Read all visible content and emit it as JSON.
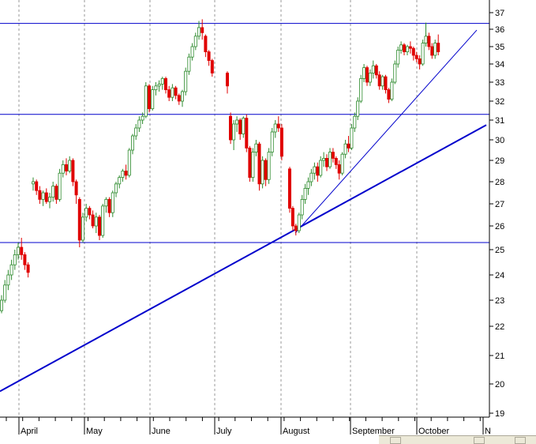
{
  "chart_data": {
    "type": "candlestick",
    "title": "",
    "xlabel": "",
    "ylabel": "",
    "ylim": [
      19,
      37
    ],
    "y_ticks": [
      19,
      20,
      21,
      22,
      23,
      24,
      25,
      26,
      27,
      28,
      29,
      30,
      31,
      32,
      33,
      34,
      35,
      36,
      37
    ],
    "x_ticks": [
      "April",
      "May",
      "June",
      "July",
      "August",
      "September",
      "October",
      "N"
    ],
    "grid": "vertical dashed at month starts",
    "axis_position": "right",
    "colors": {
      "up": "#2e8b2e",
      "down": "#e00000",
      "line": "#0000cc",
      "grid": "#9a9a9a"
    },
    "horizontal_lines": [
      36.35,
      31.3,
      25.3
    ],
    "trendlines": [
      {
        "from": [
          "start",
          19.75
        ],
        "to": [
          "end",
          30.75
        ]
      },
      {
        "from": [
          "August",
          25.7
        ],
        "to": [
          "October",
          35.95
        ]
      }
    ],
    "candles": [
      {
        "o": 22.6,
        "h": 23.2,
        "l": 22.5,
        "c": 23.0
      },
      {
        "o": 23.0,
        "h": 23.8,
        "l": 22.9,
        "c": 23.6
      },
      {
        "o": 23.6,
        "h": 24.2,
        "l": 23.4,
        "c": 24.0
      },
      {
        "o": 24.0,
        "h": 24.6,
        "l": 23.8,
        "c": 24.4
      },
      {
        "o": 24.4,
        "h": 25.0,
        "l": 24.2,
        "c": 24.8
      },
      {
        "o": 24.8,
        "h": 25.3,
        "l": 24.6,
        "c": 25.1
      },
      {
        "o": 25.1,
        "h": 25.5,
        "l": 24.6,
        "c": 24.8
      },
      {
        "o": 24.8,
        "h": 24.9,
        "l": 24.2,
        "c": 24.4
      },
      {
        "o": 24.4,
        "h": 24.5,
        "l": 23.9,
        "c": 24.1
      },
      {
        "o": 27.9,
        "h": 28.2,
        "l": 27.6,
        "c": 28.0
      },
      {
        "o": 28.0,
        "h": 28.1,
        "l": 27.4,
        "c": 27.6
      },
      {
        "o": 27.6,
        "h": 27.8,
        "l": 27.0,
        "c": 27.2
      },
      {
        "o": 27.2,
        "h": 27.6,
        "l": 26.9,
        "c": 27.5
      },
      {
        "o": 27.5,
        "h": 27.7,
        "l": 27.0,
        "c": 27.1
      },
      {
        "o": 27.1,
        "h": 27.5,
        "l": 26.8,
        "c": 27.3
      },
      {
        "o": 27.3,
        "h": 28.0,
        "l": 27.1,
        "c": 27.8
      },
      {
        "o": 27.8,
        "h": 27.9,
        "l": 27.0,
        "c": 27.2
      },
      {
        "o": 27.2,
        "h": 28.6,
        "l": 27.1,
        "c": 28.4
      },
      {
        "o": 28.4,
        "h": 29.0,
        "l": 28.2,
        "c": 28.8
      },
      {
        "o": 28.8,
        "h": 29.1,
        "l": 28.3,
        "c": 28.5
      },
      {
        "o": 28.5,
        "h": 29.2,
        "l": 28.4,
        "c": 29.0
      },
      {
        "o": 29.0,
        "h": 29.1,
        "l": 27.8,
        "c": 28.0
      },
      {
        "o": 28.0,
        "h": 28.1,
        "l": 27.0,
        "c": 27.4
      },
      {
        "o": 27.2,
        "h": 27.3,
        "l": 25.1,
        "c": 25.4
      },
      {
        "o": 25.4,
        "h": 26.6,
        "l": 25.3,
        "c": 26.4
      },
      {
        "o": 26.4,
        "h": 27.0,
        "l": 26.2,
        "c": 26.8
      },
      {
        "o": 26.8,
        "h": 26.9,
        "l": 26.3,
        "c": 26.5
      },
      {
        "o": 26.5,
        "h": 26.7,
        "l": 25.9,
        "c": 26.0
      },
      {
        "o": 26.0,
        "h": 26.6,
        "l": 25.7,
        "c": 26.4
      },
      {
        "o": 26.4,
        "h": 26.5,
        "l": 25.4,
        "c": 25.6
      },
      {
        "o": 25.6,
        "h": 27.0,
        "l": 25.5,
        "c": 26.9
      },
      {
        "o": 26.9,
        "h": 27.3,
        "l": 26.6,
        "c": 27.2
      },
      {
        "o": 27.2,
        "h": 27.3,
        "l": 26.4,
        "c": 26.6
      },
      {
        "o": 26.6,
        "h": 27.6,
        "l": 26.4,
        "c": 27.5
      },
      {
        "o": 27.5,
        "h": 28.0,
        "l": 27.3,
        "c": 27.9
      },
      {
        "o": 27.9,
        "h": 28.3,
        "l": 27.7,
        "c": 28.2
      },
      {
        "o": 28.2,
        "h": 28.6,
        "l": 28.0,
        "c": 28.5
      },
      {
        "o": 28.5,
        "h": 28.8,
        "l": 28.1,
        "c": 28.3
      },
      {
        "o": 28.3,
        "h": 29.6,
        "l": 28.2,
        "c": 29.5
      },
      {
        "o": 29.5,
        "h": 30.3,
        "l": 29.3,
        "c": 30.2
      },
      {
        "o": 30.2,
        "h": 30.8,
        "l": 30.0,
        "c": 30.6
      },
      {
        "o": 30.6,
        "h": 31.2,
        "l": 30.4,
        "c": 31.0
      },
      {
        "o": 31.0,
        "h": 31.4,
        "l": 30.8,
        "c": 31.2
      },
      {
        "o": 31.2,
        "h": 33.0,
        "l": 31.1,
        "c": 32.8
      },
      {
        "o": 32.8,
        "h": 32.9,
        "l": 31.4,
        "c": 31.6
      },
      {
        "o": 31.6,
        "h": 32.8,
        "l": 31.5,
        "c": 32.6
      },
      {
        "o": 32.6,
        "h": 33.0,
        "l": 32.3,
        "c": 32.8
      },
      {
        "o": 32.8,
        "h": 33.1,
        "l": 32.5,
        "c": 32.9
      },
      {
        "o": 32.9,
        "h": 33.3,
        "l": 32.6,
        "c": 33.2
      },
      {
        "o": 33.2,
        "h": 33.3,
        "l": 32.4,
        "c": 32.6
      },
      {
        "o": 32.6,
        "h": 32.8,
        "l": 32.0,
        "c": 32.2
      },
      {
        "o": 32.2,
        "h": 32.9,
        "l": 32.0,
        "c": 32.7
      },
      {
        "o": 32.7,
        "h": 32.8,
        "l": 32.1,
        "c": 32.3
      },
      {
        "o": 32.3,
        "h": 32.4,
        "l": 31.8,
        "c": 32.0
      },
      {
        "o": 32.0,
        "h": 32.6,
        "l": 31.7,
        "c": 32.5
      },
      {
        "o": 32.5,
        "h": 33.8,
        "l": 32.3,
        "c": 33.6
      },
      {
        "o": 33.6,
        "h": 34.6,
        "l": 33.4,
        "c": 34.4
      },
      {
        "o": 34.4,
        "h": 35.2,
        "l": 34.2,
        "c": 35.0
      },
      {
        "o": 35.0,
        "h": 35.8,
        "l": 34.8,
        "c": 35.6
      },
      {
        "o": 35.6,
        "h": 36.5,
        "l": 35.4,
        "c": 36.1
      },
      {
        "o": 36.1,
        "h": 36.6,
        "l": 35.4,
        "c": 35.8
      },
      {
        "o": 35.6,
        "h": 35.7,
        "l": 34.4,
        "c": 34.7
      },
      {
        "o": 34.7,
        "h": 34.8,
        "l": 33.9,
        "c": 34.2
      },
      {
        "o": 34.2,
        "h": 34.3,
        "l": 33.3,
        "c": 33.5
      },
      {
        "o": 33.5,
        "h": 33.6,
        "l": 32.4,
        "c": 32.8
      },
      {
        "o": 31.2,
        "h": 31.4,
        "l": 29.8,
        "c": 30.0
      },
      {
        "o": 30.0,
        "h": 31.0,
        "l": 29.5,
        "c": 30.8
      },
      {
        "o": 30.8,
        "h": 31.2,
        "l": 30.4,
        "c": 31.0
      },
      {
        "o": 31.0,
        "h": 31.1,
        "l": 30.0,
        "c": 30.3
      },
      {
        "o": 30.3,
        "h": 31.2,
        "l": 30.1,
        "c": 31.1
      },
      {
        "o": 31.1,
        "h": 31.3,
        "l": 29.4,
        "c": 29.6
      },
      {
        "o": 29.6,
        "h": 29.7,
        "l": 28.0,
        "c": 28.2
      },
      {
        "o": 28.2,
        "h": 29.6,
        "l": 28.0,
        "c": 29.4
      },
      {
        "o": 29.4,
        "h": 30.0,
        "l": 29.2,
        "c": 29.8
      },
      {
        "o": 29.8,
        "h": 29.9,
        "l": 27.6,
        "c": 27.9
      },
      {
        "o": 27.9,
        "h": 29.2,
        "l": 27.7,
        "c": 29.0
      },
      {
        "o": 29.0,
        "h": 29.1,
        "l": 27.8,
        "c": 28.1
      },
      {
        "o": 28.1,
        "h": 29.6,
        "l": 27.9,
        "c": 29.4
      },
      {
        "o": 29.4,
        "h": 30.6,
        "l": 29.2,
        "c": 30.4
      },
      {
        "o": 30.4,
        "h": 31.0,
        "l": 30.1,
        "c": 30.8
      },
      {
        "o": 30.8,
        "h": 31.2,
        "l": 30.4,
        "c": 30.6
      },
      {
        "o": 30.6,
        "h": 30.8,
        "l": 29.0,
        "c": 29.2
      },
      {
        "o": 28.6,
        "h": 28.7,
        "l": 26.6,
        "c": 26.8
      },
      {
        "o": 26.8,
        "h": 26.9,
        "l": 25.8,
        "c": 26.0
      },
      {
        "o": 26.0,
        "h": 26.1,
        "l": 25.6,
        "c": 25.8
      },
      {
        "o": 25.8,
        "h": 26.6,
        "l": 25.7,
        "c": 26.5
      },
      {
        "o": 26.5,
        "h": 27.4,
        "l": 26.3,
        "c": 27.2
      },
      {
        "o": 27.2,
        "h": 27.9,
        "l": 27.0,
        "c": 27.7
      },
      {
        "o": 27.7,
        "h": 28.2,
        "l": 27.4,
        "c": 28.0
      },
      {
        "o": 28.0,
        "h": 28.6,
        "l": 27.8,
        "c": 28.4
      },
      {
        "o": 28.4,
        "h": 28.9,
        "l": 28.1,
        "c": 28.7
      },
      {
        "o": 28.7,
        "h": 28.9,
        "l": 28.0,
        "c": 28.3
      },
      {
        "o": 28.3,
        "h": 29.2,
        "l": 28.2,
        "c": 29.0
      },
      {
        "o": 29.0,
        "h": 29.4,
        "l": 28.7,
        "c": 29.1
      },
      {
        "o": 29.1,
        "h": 29.3,
        "l": 28.5,
        "c": 28.7
      },
      {
        "o": 28.7,
        "h": 29.6,
        "l": 28.6,
        "c": 29.4
      },
      {
        "o": 29.4,
        "h": 29.6,
        "l": 28.9,
        "c": 29.1
      },
      {
        "o": 29.1,
        "h": 29.2,
        "l": 28.6,
        "c": 28.8
      },
      {
        "o": 28.8,
        "h": 29.0,
        "l": 28.1,
        "c": 28.4
      },
      {
        "o": 28.4,
        "h": 29.4,
        "l": 28.3,
        "c": 29.3
      },
      {
        "o": 29.3,
        "h": 30.0,
        "l": 29.1,
        "c": 29.8
      },
      {
        "o": 29.8,
        "h": 30.2,
        "l": 29.4,
        "c": 29.6
      },
      {
        "o": 29.6,
        "h": 30.8,
        "l": 29.5,
        "c": 30.6
      },
      {
        "o": 30.6,
        "h": 31.4,
        "l": 30.4,
        "c": 31.2
      },
      {
        "o": 31.2,
        "h": 32.2,
        "l": 31.0,
        "c": 32.0
      },
      {
        "o": 32.0,
        "h": 33.4,
        "l": 31.9,
        "c": 33.2
      },
      {
        "o": 33.2,
        "h": 34.0,
        "l": 33.0,
        "c": 33.8
      },
      {
        "o": 33.8,
        "h": 33.9,
        "l": 32.8,
        "c": 33.0
      },
      {
        "o": 33.0,
        "h": 33.7,
        "l": 32.8,
        "c": 33.5
      },
      {
        "o": 33.5,
        "h": 34.2,
        "l": 33.2,
        "c": 33.9
      },
      {
        "o": 33.9,
        "h": 34.0,
        "l": 33.2,
        "c": 33.4
      },
      {
        "o": 33.4,
        "h": 33.6,
        "l": 32.6,
        "c": 32.8
      },
      {
        "o": 32.8,
        "h": 33.4,
        "l": 32.6,
        "c": 33.3
      },
      {
        "o": 33.3,
        "h": 33.4,
        "l": 32.4,
        "c": 32.6
      },
      {
        "o": 32.6,
        "h": 32.7,
        "l": 31.9,
        "c": 32.1
      },
      {
        "o": 32.1,
        "h": 33.2,
        "l": 32.0,
        "c": 33.0
      },
      {
        "o": 33.0,
        "h": 34.2,
        "l": 32.9,
        "c": 34.0
      },
      {
        "o": 34.0,
        "h": 35.0,
        "l": 33.8,
        "c": 34.8
      },
      {
        "o": 34.8,
        "h": 35.3,
        "l": 34.6,
        "c": 35.1
      },
      {
        "o": 35.1,
        "h": 35.2,
        "l": 34.5,
        "c": 34.7
      },
      {
        "o": 34.7,
        "h": 35.1,
        "l": 34.5,
        "c": 35.0
      },
      {
        "o": 35.0,
        "h": 35.3,
        "l": 34.6,
        "c": 34.9
      },
      {
        "o": 34.9,
        "h": 35.0,
        "l": 34.2,
        "c": 34.5
      },
      {
        "o": 34.5,
        "h": 34.7,
        "l": 34.1,
        "c": 34.3
      },
      {
        "o": 34.3,
        "h": 34.5,
        "l": 33.7,
        "c": 34.0
      },
      {
        "o": 34.0,
        "h": 35.4,
        "l": 33.9,
        "c": 35.2
      },
      {
        "o": 35.2,
        "h": 36.4,
        "l": 35.0,
        "c": 35.6
      },
      {
        "o": 35.6,
        "h": 35.8,
        "l": 34.8,
        "c": 35.0
      },
      {
        "o": 35.0,
        "h": 35.2,
        "l": 34.3,
        "c": 34.5
      },
      {
        "o": 34.5,
        "h": 35.4,
        "l": 34.3,
        "c": 35.2
      },
      {
        "o": 35.2,
        "h": 35.7,
        "l": 34.5,
        "c": 34.7
      }
    ]
  }
}
